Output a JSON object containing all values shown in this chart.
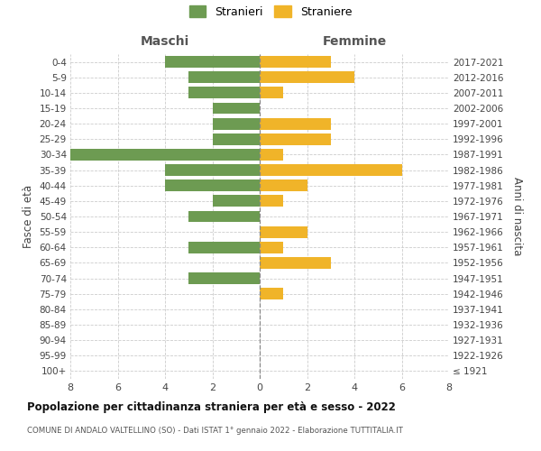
{
  "age_groups": [
    "100+",
    "95-99",
    "90-94",
    "85-89",
    "80-84",
    "75-79",
    "70-74",
    "65-69",
    "60-64",
    "55-59",
    "50-54",
    "45-49",
    "40-44",
    "35-39",
    "30-34",
    "25-29",
    "20-24",
    "15-19",
    "10-14",
    "5-9",
    "0-4"
  ],
  "birth_years": [
    "≤ 1921",
    "1922-1926",
    "1927-1931",
    "1932-1936",
    "1937-1941",
    "1942-1946",
    "1947-1951",
    "1952-1956",
    "1957-1961",
    "1962-1966",
    "1967-1971",
    "1972-1976",
    "1977-1981",
    "1982-1986",
    "1987-1991",
    "1992-1996",
    "1997-2001",
    "2002-2006",
    "2007-2011",
    "2012-2016",
    "2017-2021"
  ],
  "maschi": [
    0,
    0,
    0,
    0,
    0,
    0,
    3,
    0,
    3,
    0,
    3,
    2,
    4,
    4,
    8,
    2,
    2,
    2,
    3,
    3,
    4
  ],
  "femmine": [
    0,
    0,
    0,
    0,
    0,
    1,
    0,
    3,
    1,
    2,
    0,
    1,
    2,
    6,
    1,
    3,
    3,
    0,
    1,
    4,
    3
  ],
  "color_maschi": "#6d9b52",
  "color_femmine": "#f0b429",
  "title": "Popolazione per cittadinanza straniera per età e sesso - 2022",
  "subtitle": "COMUNE DI ANDALO VALTELLINO (SO) - Dati ISTAT 1° gennaio 2022 - Elaborazione TUTTITALIA.IT",
  "label_left": "Maschi",
  "label_right": "Femmine",
  "ylabel_left": "Fasce di età",
  "ylabel_right": "Anni di nascita",
  "legend_maschi": "Stranieri",
  "legend_femmine": "Straniere",
  "xlim": 8,
  "background_color": "#ffffff",
  "grid_color": "#cccccc",
  "bar_height": 0.75
}
